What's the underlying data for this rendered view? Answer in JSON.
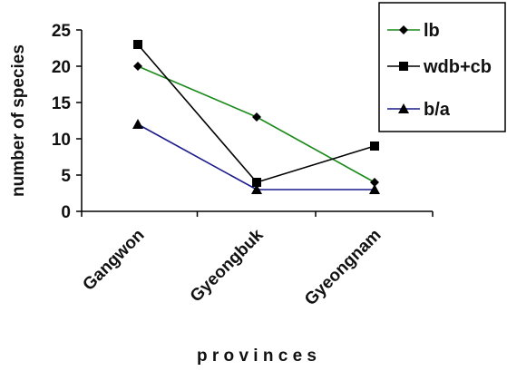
{
  "chart_data": {
    "type": "line",
    "title": "",
    "xlabel": "p r o v i n c e s",
    "ylabel": "number of species",
    "categories": [
      "Gangwon",
      "Gyeongbuk",
      "Gyeongnam"
    ],
    "ylim": [
      0,
      25
    ],
    "yticks": [
      0,
      5,
      10,
      15,
      20,
      25
    ],
    "grid": false,
    "legend_position": "top-right",
    "series": [
      {
        "name": "lb",
        "values": [
          20,
          13,
          4
        ],
        "color": "#1a8a1a",
        "marker_color": "#000000",
        "marker": "diamond"
      },
      {
        "name": "wdb+cb",
        "values": [
          23,
          4,
          9
        ],
        "color": "#000000",
        "marker_color": "#000000",
        "marker": "square"
      },
      {
        "name": "b/a",
        "values": [
          12,
          3,
          3
        ],
        "color": "#1a1a8c",
        "marker_color": "#000000",
        "marker": "triangle"
      }
    ]
  }
}
